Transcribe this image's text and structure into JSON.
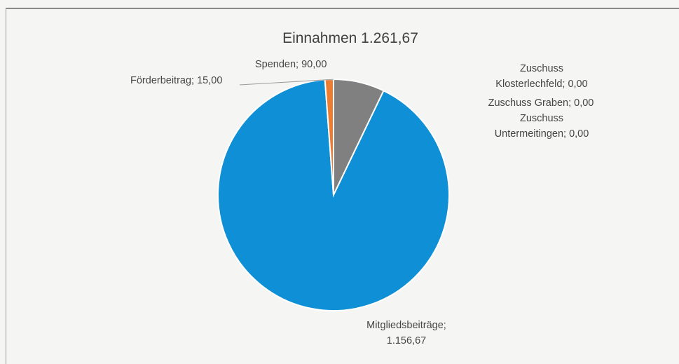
{
  "chart_data": {
    "type": "pie",
    "title": "Einnahmen 1.261,67",
    "total": 1261.67,
    "slices": [
      {
        "name": "Spenden",
        "value": 90.0,
        "label": "Spenden; 90,00",
        "color": "#808080"
      },
      {
        "name": "Mitgliedsbeiträge",
        "value": 1156.67,
        "label": "Mitgliedsbeiträge; 1.156,67",
        "color": "#0e8fd6"
      },
      {
        "name": "Förderbeitrag",
        "value": 15.0,
        "label": "Förderbeitrag; 15,00",
        "color": "#ed7d31"
      },
      {
        "name": "Zuschuss Klosterlechfeld",
        "value": 0.0,
        "label": "Zuschuss Klosterlechfeld; 0,00",
        "color": "#ffc000"
      },
      {
        "name": "Zuschuss Graben",
        "value": 0.0,
        "label": "Zuschuss Graben; 0,00",
        "color": "#5b9bd5"
      },
      {
        "name": "Zuschuss Untermeitingen",
        "value": 0.0,
        "label": "Zuschuss Untermeitingen; 0,00",
        "color": "#70ad47"
      }
    ],
    "legend": "none",
    "labels": {
      "foerderbeitrag": "Förderbeitrag; 15,00",
      "spenden": "Spenden; 90,00",
      "mitglied_line1": "Mitgliedsbeiträge;",
      "mitglied_line2": "1.156,67",
      "kloster_line1": "Zuschuss",
      "kloster_line2": "Klosterlechfeld; 0,00",
      "graben": "Zuschuss Graben; 0,00",
      "unter_line1": "Zuschuss",
      "unter_line2": "Untermeitingen; 0,00"
    }
  }
}
